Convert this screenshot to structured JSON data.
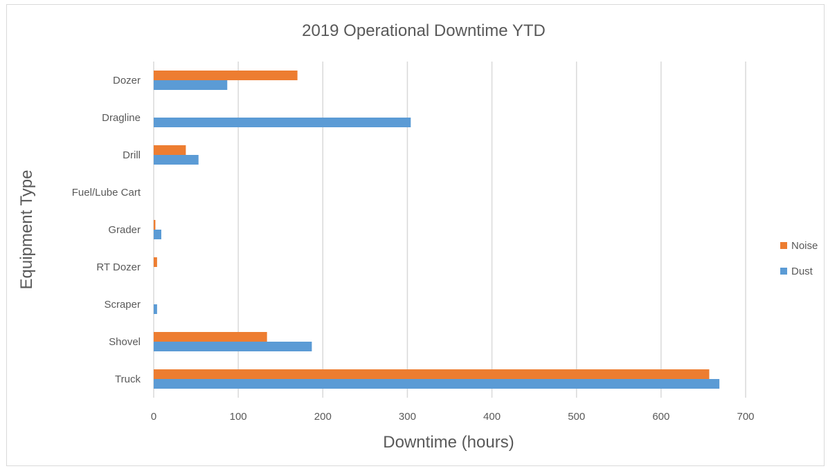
{
  "chart_data": {
    "type": "bar",
    "orientation": "horizontal",
    "title": "2019 Operational Downtime YTD",
    "xlabel": "Downtime (hours)",
    "ylabel": "Equipment Type",
    "categories": [
      "Dozer",
      "Dragline",
      "Drill",
      "Fuel/Lube Cart",
      "Grader",
      "RT Dozer",
      "Scraper",
      "Shovel",
      "Truck"
    ],
    "series": [
      {
        "name": "Noise",
        "color": "#ED7D31",
        "values": [
          170,
          0,
          38,
          0,
          2,
          4,
          0,
          134,
          657
        ]
      },
      {
        "name": "Dust",
        "color": "#5B9BD5",
        "values": [
          87,
          304,
          53,
          0,
          9,
          0,
          4,
          187,
          669
        ]
      }
    ],
    "xlim": [
      0,
      700
    ],
    "xticks": [
      0,
      100,
      200,
      300,
      400,
      500,
      600,
      700
    ],
    "grid": true,
    "legend_position": "right",
    "legend_order": [
      "Noise",
      "Dust"
    ]
  }
}
